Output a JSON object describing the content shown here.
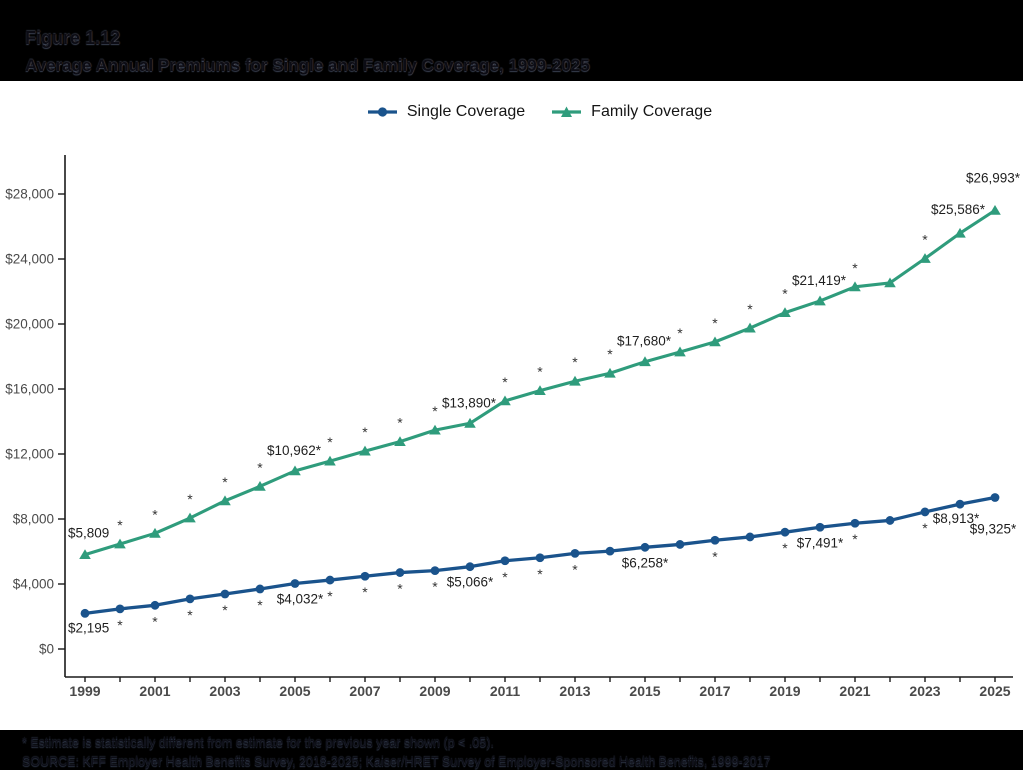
{
  "header": {
    "figure_label": "Figure 1.12",
    "title": "Average Annual Premiums for Single and Family Coverage, 1999-2025"
  },
  "legend": {
    "position": "top-center",
    "items": [
      {
        "label": "Single Coverage",
        "color": "#1A538C",
        "marker": "circle"
      },
      {
        "label": "Family Coverage",
        "color": "#2F9C7C",
        "marker": "triangle"
      }
    ]
  },
  "footnotes": {
    "line1": "* Estimate is statistically different from estimate for the previous year shown (p < .05).",
    "line2": "SOURCE: KFF Employer Health Benefits Survey, 2018-2025; Kaiser/HRET Survey of Employer-Sponsored Health Benefits, 1999-2017"
  },
  "chart_data": {
    "type": "line",
    "title": "Average Annual Premiums for Single and Family Coverage, 1999-2025",
    "xlabel": "",
    "ylabel": "",
    "grid": false,
    "xlim": [
      1999,
      2025
    ],
    "ylim": [
      0,
      28000
    ],
    "x": [
      1999,
      2000,
      2001,
      2002,
      2003,
      2004,
      2005,
      2006,
      2007,
      2008,
      2009,
      2010,
      2011,
      2012,
      2013,
      2014,
      2015,
      2016,
      2017,
      2018,
      2019,
      2020,
      2021,
      2022,
      2023,
      2024,
      2025
    ],
    "x_tick_labels": [
      "1999",
      "2001",
      "2003",
      "2005",
      "2007",
      "2009",
      "2011",
      "2013",
      "2015",
      "2017",
      "2019",
      "2021",
      "2023",
      "2025"
    ],
    "y_ticks": [
      {
        "value": 0,
        "label": "$0"
      },
      {
        "value": 4000,
        "label": "$4,000"
      },
      {
        "value": 8000,
        "label": "$8,000"
      },
      {
        "value": 12000,
        "label": "$12,000"
      },
      {
        "value": 16000,
        "label": "$16,000"
      },
      {
        "value": 20000,
        "label": "$20,000"
      },
      {
        "value": 24000,
        "label": "$24,000"
      },
      {
        "value": 28000,
        "label": "$28,000"
      }
    ],
    "series": [
      {
        "name": "Single Coverage",
        "color": "#1A538C",
        "marker": "circle",
        "values": [
          2195,
          2471,
          2689,
          3083,
          3383,
          3695,
          4032,
          4242,
          4479,
          4704,
          4824,
          5066,
          5429,
          5615,
          5884,
          6025,
          6258,
          6435,
          6690,
          6896,
          7188,
          7491,
          7739,
          7911,
          8435,
          8913,
          9325
        ]
      },
      {
        "name": "Family Coverage",
        "color": "#2F9C7C",
        "marker": "triangle",
        "values": [
          5809,
          6460,
          7120,
          8060,
          9120,
          10010,
          10962,
          11560,
          12180,
          12760,
          13470,
          13890,
          15270,
          15900,
          16480,
          16970,
          17680,
          18280,
          18900,
          19750,
          20700,
          21419,
          22290,
          22530,
          24030,
          25586,
          26993
        ]
      }
    ],
    "significance_marker": "*",
    "significance_years": {
      "single": [
        2000,
        2001,
        2002,
        2003,
        2004,
        2006,
        2007,
        2008,
        2009,
        2011,
        2012,
        2013,
        2017,
        2019,
        2021,
        2023
      ],
      "family": [
        2000,
        2001,
        2002,
        2003,
        2004,
        2006,
        2007,
        2008,
        2009,
        2011,
        2012,
        2013,
        2014,
        2016,
        2017,
        2018,
        2019,
        2021,
        2023
      ]
    },
    "point_labels": [
      {
        "series": "single",
        "year": 1999,
        "text": "$2,195",
        "position": "below-left"
      },
      {
        "series": "family",
        "year": 1999,
        "text": "$5,809",
        "position": "above-left"
      },
      {
        "series": "single",
        "year": 2005,
        "text": "$4,032*",
        "position": "below-right"
      },
      {
        "series": "family",
        "year": 2005,
        "text": "$10,962*",
        "position": "above"
      },
      {
        "series": "single",
        "year": 2010,
        "text": "$5,066*",
        "position": "below"
      },
      {
        "series": "family",
        "year": 2010,
        "text": "$13,890*",
        "position": "above"
      },
      {
        "series": "single",
        "year": 2015,
        "text": "$6,258*",
        "position": "below"
      },
      {
        "series": "family",
        "year": 2015,
        "text": "$17,680*",
        "position": "above"
      },
      {
        "series": "single",
        "year": 2020,
        "text": "$7,491*",
        "position": "below"
      },
      {
        "series": "family",
        "year": 2020,
        "text": "$21,419*",
        "position": "above"
      },
      {
        "series": "single",
        "year": 2024,
        "text": "$8,913*",
        "position": "below-left"
      },
      {
        "series": "family",
        "year": 2024,
        "text": "$25,586*",
        "position": "above-left"
      },
      {
        "series": "single",
        "year": 2025,
        "text": "$9,325*",
        "position": "below-far"
      },
      {
        "series": "family",
        "year": 2025,
        "text": "$26,993*",
        "position": "above-far"
      }
    ]
  }
}
